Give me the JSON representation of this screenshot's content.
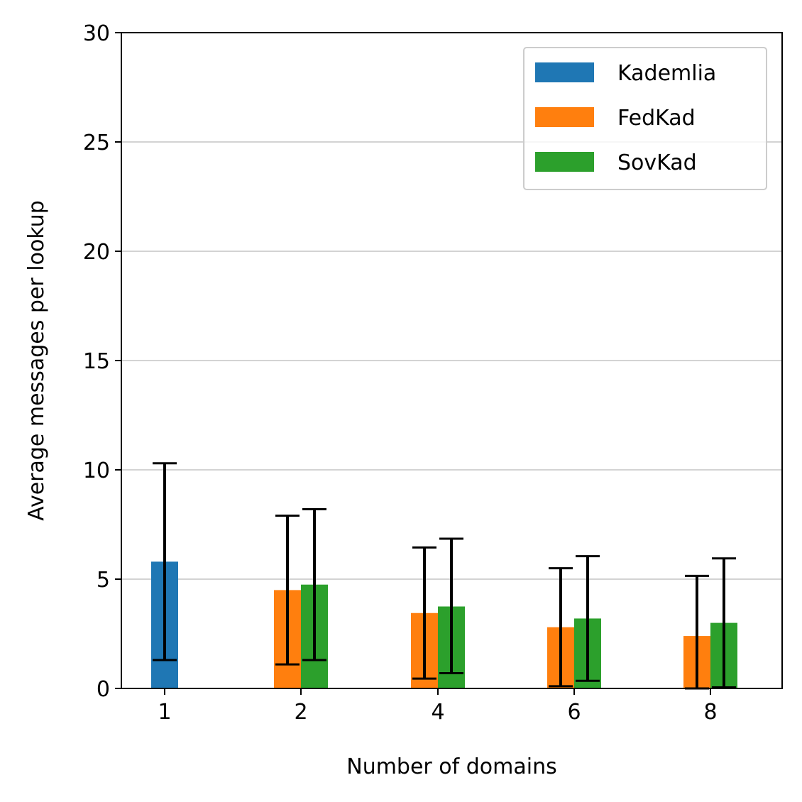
{
  "chart_data": {
    "type": "bar",
    "categories": [
      "1",
      "2",
      "4",
      "6",
      "8"
    ],
    "xlabel": "Number of domains",
    "ylabel": "Average messages per lookup",
    "ylim": [
      0,
      30
    ],
    "yticks": [
      "0",
      "5",
      "10",
      "15",
      "20",
      "25",
      "30"
    ],
    "grid": "horizontal",
    "legend_position": "top-right",
    "series": [
      {
        "name": "Kademlia",
        "color": "#1f77b4",
        "values": [
          5.8,
          null,
          null,
          null,
          null
        ],
        "err_low": [
          1.3,
          null,
          null,
          null,
          null
        ],
        "err_high": [
          10.3,
          null,
          null,
          null,
          null
        ]
      },
      {
        "name": "FedKad",
        "color": "#ff7f0e",
        "values": [
          null,
          4.5,
          3.45,
          2.8,
          2.4
        ],
        "err_low": [
          null,
          1.1,
          0.45,
          0.1,
          0.0
        ],
        "err_high": [
          null,
          7.9,
          6.45,
          5.5,
          5.15
        ]
      },
      {
        "name": "SovKad",
        "color": "#2ca02c",
        "values": [
          null,
          4.75,
          3.75,
          3.2,
          3.0
        ],
        "err_low": [
          null,
          1.3,
          0.7,
          0.35,
          0.05
        ],
        "err_high": [
          null,
          8.2,
          6.85,
          6.05,
          5.95
        ]
      }
    ]
  }
}
